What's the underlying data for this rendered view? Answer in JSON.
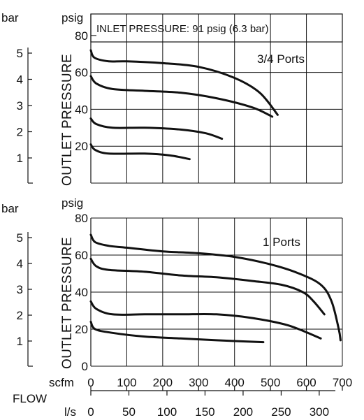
{
  "chart_data": [
    {
      "type": "line",
      "annotation": "3/4 Ports",
      "header": "INLET PRESSURE: 91 psig (6.3 bar)",
      "ylabel": "OUTLET PRESSURE",
      "left_unit": "bar",
      "right_unit": "psig",
      "ylim": [
        0,
        90
      ],
      "xlim": [
        0,
        700
      ],
      "psig_ticks": [
        "20",
        "40",
        "60",
        "80"
      ],
      "bar_ticks": [
        "1",
        "2",
        "3",
        "4",
        "5"
      ],
      "series": [
        {
          "values": [
            [
              0,
              72
            ],
            [
              10,
              68
            ],
            [
              50,
              66
            ],
            [
              100,
              66
            ],
            [
              200,
              65
            ],
            [
              300,
              63
            ],
            [
              400,
              57
            ],
            [
              470,
              49
            ],
            [
              520,
              37
            ]
          ]
        },
        {
          "values": [
            [
              0,
              58
            ],
            [
              15,
              54
            ],
            [
              60,
              51
            ],
            [
              150,
              50
            ],
            [
              250,
              49
            ],
            [
              350,
              46
            ],
            [
              450,
              41
            ],
            [
              505,
              36
            ]
          ]
        },
        {
          "values": [
            [
              0,
              35
            ],
            [
              15,
              32
            ],
            [
              60,
              30
            ],
            [
              150,
              30
            ],
            [
              250,
              29
            ],
            [
              320,
              27
            ],
            [
              365,
              24
            ]
          ]
        },
        {
          "values": [
            [
              0,
              21
            ],
            [
              12,
              18
            ],
            [
              50,
              16
            ],
            [
              150,
              16
            ],
            [
              220,
              15
            ],
            [
              275,
              13
            ]
          ]
        }
      ]
    },
    {
      "type": "line",
      "annotation": "1 Ports",
      "ylabel": "OUTLET PRESSURE",
      "left_unit": "bar",
      "right_unit": "psig",
      "ylim": [
        0,
        80
      ],
      "xlim": [
        0,
        700
      ],
      "psig_ticks": [
        "0",
        "20",
        "40",
        "60",
        "80"
      ],
      "bar_ticks": [
        "1",
        "2",
        "3",
        "4",
        "5"
      ],
      "series": [
        {
          "values": [
            [
              0,
              71
            ],
            [
              12,
              67
            ],
            [
              50,
              65
            ],
            [
              100,
              64
            ],
            [
              200,
              62
            ],
            [
              300,
              61
            ],
            [
              400,
              59
            ],
            [
              500,
              55
            ],
            [
              580,
              50
            ],
            [
              640,
              44
            ],
            [
              670,
              35
            ],
            [
              690,
              20
            ],
            [
              695,
              14
            ]
          ]
        },
        {
          "values": [
            [
              0,
              58
            ],
            [
              15,
              54
            ],
            [
              50,
              52
            ],
            [
              150,
              51
            ],
            [
              250,
              49
            ],
            [
              350,
              48
            ],
            [
              450,
              46
            ],
            [
              530,
              44
            ],
            [
              590,
              40
            ],
            [
              620,
              35
            ],
            [
              650,
              28
            ]
          ]
        },
        {
          "values": [
            [
              0,
              35
            ],
            [
              15,
              31
            ],
            [
              60,
              28
            ],
            [
              150,
              28
            ],
            [
              250,
              28
            ],
            [
              350,
              28
            ],
            [
              450,
              26
            ],
            [
              550,
              22
            ],
            [
              640,
              15
            ]
          ]
        },
        {
          "values": [
            [
              0,
              24
            ],
            [
              12,
              20
            ],
            [
              60,
              18
            ],
            [
              150,
              16
            ],
            [
              250,
              15
            ],
            [
              350,
              14
            ],
            [
              480,
              13
            ]
          ]
        }
      ]
    }
  ],
  "x_axis": {
    "flow_label": "FLOW",
    "scfm_label": "scfm",
    "ls_label": "l/s",
    "scfm_ticks": [
      "0",
      "100",
      "200",
      "300",
      "400",
      "500",
      "600",
      "700"
    ],
    "ls_ticks": [
      "0",
      "50",
      "100",
      "150",
      "200",
      "250",
      "300"
    ]
  }
}
